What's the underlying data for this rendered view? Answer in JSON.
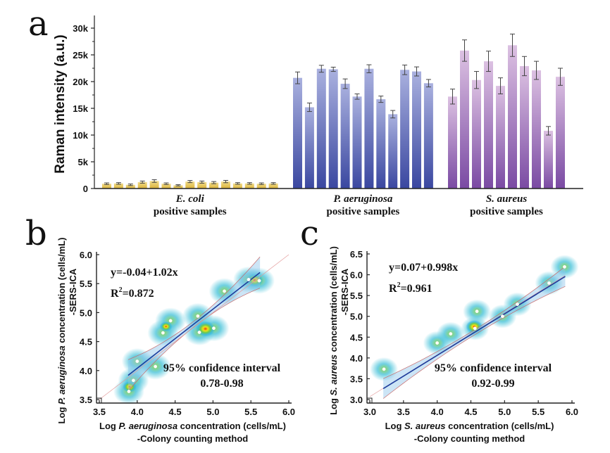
{
  "panels": {
    "a": "a",
    "b": "b",
    "c": "c"
  },
  "chart_data": [
    {
      "id": "a",
      "type": "bar",
      "title": "",
      "ylabel": "Raman intensity (a.u.)",
      "xlabel": "",
      "ylim": [
        0,
        30000
      ],
      "yticks": [
        0,
        5000,
        10000,
        15000,
        20000,
        25000,
        30000
      ],
      "ytick_labels": [
        "0",
        "5k",
        "10k",
        "15k",
        "20k",
        "25k",
        "30k"
      ],
      "groups": [
        {
          "name": "E. coli",
          "label_species": "E. coli",
          "label_sub": "positive samples",
          "color_top": "#f2dd8a",
          "color_bottom": "#d9b23a",
          "values": [
            900,
            950,
            700,
            1200,
            1400,
            900,
            600,
            1300,
            1200,
            1100,
            1300,
            950,
            950,
            900,
            950
          ],
          "errors": [
            150,
            150,
            150,
            200,
            250,
            150,
            120,
            200,
            200,
            200,
            220,
            150,
            150,
            150,
            150
          ]
        },
        {
          "name": "P. aeruginosa",
          "label_species": "P. aeruginosa",
          "label_sub": "positive samples",
          "color_top": "#aab1df",
          "color_bottom": "#3a47a0",
          "values": [
            20700,
            15200,
            22400,
            22300,
            19600,
            17200,
            22400,
            16700,
            13900,
            22200,
            21900,
            19700
          ],
          "errors": [
            1100,
            800,
            650,
            400,
            900,
            500,
            750,
            600,
            700,
            900,
            850,
            700
          ]
        },
        {
          "name": "S. aureus",
          "label_species": "S. aureus",
          "label_sub": "positive samples",
          "color_top": "#dcc1e2",
          "color_bottom": "#7a4aa3",
          "values": [
            17200,
            25800,
            20300,
            23800,
            19200,
            26800,
            22900,
            22100,
            10800,
            20900
          ],
          "errors": [
            1400,
            2000,
            1600,
            1900,
            1500,
            2100,
            1800,
            1700,
            800,
            1600
          ]
        }
      ]
    },
    {
      "id": "b",
      "type": "scatter",
      "xlabel_prefix": "Log ",
      "xlabel_species": "P. aeruginosa",
      "xlabel_suffix": " concentration (cells/mL)",
      "xlabel_line2": "-Colony counting method",
      "ylabel_prefix": "Log ",
      "ylabel_species": "P. aeruginosa",
      "ylabel_suffix": " concentration (cells/mL)",
      "ylabel_line2": "-SERS-ICA",
      "xlim": [
        3.5,
        6.0
      ],
      "ylim": [
        3.5,
        6.0
      ],
      "xticks": [
        "3.5",
        "4.0",
        "4.5",
        "5.0",
        "5.5",
        "6.0"
      ],
      "yticks": [
        "3.5",
        "4.0",
        "4.5",
        "5.0",
        "5.5",
        "6.0"
      ],
      "equation": "y=-0.04+1.02x",
      "r2_label": "R",
      "r2_sup": "2",
      "r2_value": "=0.872",
      "ci_label": "95% confidence interval",
      "ci_range": "0.78-0.98",
      "fit": {
        "intercept": -0.04,
        "slope": 1.02,
        "x_range": [
          3.88,
          5.62
        ]
      },
      "points": [
        {
          "x": 5.47,
          "y": 5.57
        },
        {
          "x": 5.61,
          "y": 5.55
        },
        {
          "x": 5.15,
          "y": 5.37
        },
        {
          "x": 4.44,
          "y": 4.86
        },
        {
          "x": 4.34,
          "y": 4.65
        },
        {
          "x": 4.8,
          "y": 4.94
        },
        {
          "x": 4.82,
          "y": 4.66
        },
        {
          "x": 5.01,
          "y": 4.73
        },
        {
          "x": 4.0,
          "y": 4.16
        },
        {
          "x": 4.24,
          "y": 4.07
        },
        {
          "x": 3.95,
          "y": 3.83
        },
        {
          "x": 3.89,
          "y": 3.64
        }
      ]
    },
    {
      "id": "c",
      "type": "scatter",
      "xlabel_prefix": "Log ",
      "xlabel_species": "S. aureus",
      "xlabel_suffix": " concentration (cells/mL)",
      "xlabel_line2": "-Colony counting method",
      "ylabel_prefix": "Log ",
      "ylabel_species": "S. aureus",
      "ylabel_suffix": " concentration (cells/mL)",
      "ylabel_line2": "-SERS-ICA",
      "xlim": [
        3.0,
        6.0
      ],
      "ylim": [
        3.0,
        6.5
      ],
      "xticks": [
        "3.0",
        "3.5",
        "4.0",
        "4.5",
        "5.0",
        "5.5",
        "6.0"
      ],
      "yticks": [
        "3.0",
        "3.5",
        "4.0",
        "4.5",
        "5.0",
        "5.5",
        "6.0",
        "6.5"
      ],
      "equation": "y=0.07+0.998x",
      "r2_label": "R",
      "r2_sup": "2",
      "r2_value": "=0.961",
      "ci_label": "95% confidence interval",
      "ci_range": "0.92-0.99",
      "fit": {
        "intercept": 0.07,
        "slope": 0.998,
        "x_range": [
          3.2,
          5.9
        ]
      },
      "points": [
        {
          "x": 5.89,
          "y": 6.19
        },
        {
          "x": 5.66,
          "y": 5.8
        },
        {
          "x": 5.19,
          "y": 5.29
        },
        {
          "x": 4.97,
          "y": 5.0
        },
        {
          "x": 4.59,
          "y": 5.12
        },
        {
          "x": 4.56,
          "y": 4.71
        },
        {
          "x": 4.2,
          "y": 4.58
        },
        {
          "x": 4.0,
          "y": 4.36
        },
        {
          "x": 3.21,
          "y": 3.73
        }
      ]
    }
  ]
}
